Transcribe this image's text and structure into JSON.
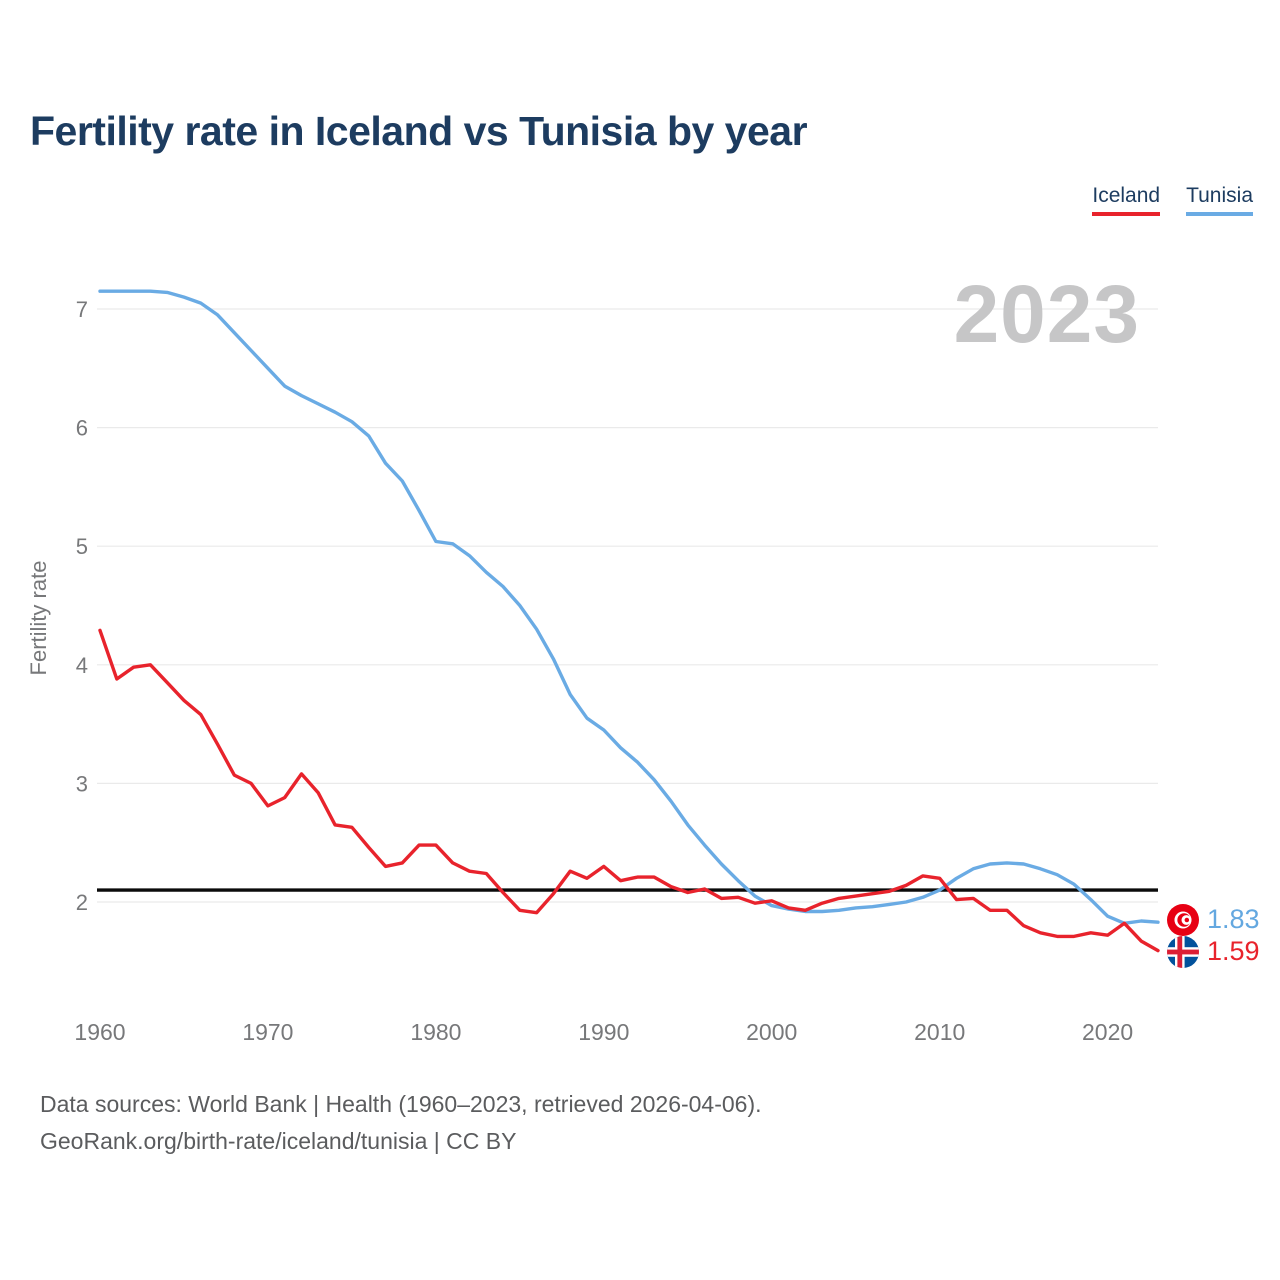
{
  "title": "Fertility rate in Iceland vs Tunisia by year",
  "legend": [
    {
      "label": "Iceland",
      "color": "#e8232c"
    },
    {
      "label": "Tunisia",
      "color": "#6aabe4"
    }
  ],
  "watermark": "2023",
  "chart_data": {
    "type": "line",
    "title": "Fertility rate in Iceland vs Tunisia by year",
    "xlabel": "",
    "ylabel": "Fertility rate",
    "x_ticks": [
      1960,
      1970,
      1980,
      1990,
      2000,
      2010,
      2020
    ],
    "y_ticks": [
      2,
      3,
      4,
      5,
      6,
      7
    ],
    "ylim": [
      1.45,
      7.35
    ],
    "xlim": [
      1960,
      2023
    ],
    "grid": "horizontal",
    "legend_position": "top-right",
    "reference_line": 2.1,
    "x": [
      1960,
      1961,
      1962,
      1963,
      1964,
      1965,
      1966,
      1967,
      1968,
      1969,
      1970,
      1971,
      1972,
      1973,
      1974,
      1975,
      1976,
      1977,
      1978,
      1979,
      1980,
      1981,
      1982,
      1983,
      1984,
      1985,
      1986,
      1987,
      1988,
      1989,
      1990,
      1991,
      1992,
      1993,
      1994,
      1995,
      1996,
      1997,
      1998,
      1999,
      2000,
      2001,
      2002,
      2003,
      2004,
      2005,
      2006,
      2007,
      2008,
      2009,
      2010,
      2011,
      2012,
      2013,
      2014,
      2015,
      2016,
      2017,
      2018,
      2019,
      2020,
      2021,
      2022,
      2023
    ],
    "series": [
      {
        "name": "Iceland",
        "color": "#e8232c",
        "values": [
          4.29,
          3.88,
          3.98,
          4.0,
          3.85,
          3.7,
          3.58,
          3.33,
          3.07,
          3.0,
          2.81,
          2.88,
          3.08,
          2.92,
          2.65,
          2.63,
          2.46,
          2.3,
          2.33,
          2.48,
          2.48,
          2.33,
          2.26,
          2.24,
          2.08,
          1.93,
          1.91,
          2.07,
          2.26,
          2.2,
          2.3,
          2.18,
          2.21,
          2.21,
          2.13,
          2.08,
          2.11,
          2.03,
          2.04,
          1.99,
          2.01,
          1.95,
          1.93,
          1.99,
          2.03,
          2.05,
          2.07,
          2.09,
          2.14,
          2.22,
          2.2,
          2.02,
          2.03,
          1.93,
          1.93,
          1.8,
          1.74,
          1.71,
          1.71,
          1.74,
          1.72,
          1.82,
          1.67,
          1.59
        ]
      },
      {
        "name": "Tunisia",
        "color": "#6aabe4",
        "values": [
          7.15,
          7.15,
          7.15,
          7.15,
          7.14,
          7.1,
          7.05,
          6.95,
          6.8,
          6.65,
          6.5,
          6.35,
          6.27,
          6.2,
          6.13,
          6.05,
          5.93,
          5.7,
          5.55,
          5.3,
          5.04,
          5.02,
          4.92,
          4.78,
          4.66,
          4.5,
          4.3,
          4.05,
          3.75,
          3.55,
          3.45,
          3.3,
          3.18,
          3.03,
          2.85,
          2.65,
          2.48,
          2.32,
          2.18,
          2.05,
          1.97,
          1.94,
          1.92,
          1.92,
          1.93,
          1.95,
          1.96,
          1.98,
          2.0,
          2.04,
          2.1,
          2.2,
          2.28,
          2.32,
          2.33,
          2.32,
          2.28,
          2.23,
          2.15,
          2.02,
          1.88,
          1.82,
          1.84,
          1.83
        ]
      }
    ],
    "end_labels": [
      {
        "series": "Tunisia",
        "value": "1.83",
        "flag": "tunisia"
      },
      {
        "series": "Iceland",
        "value": "1.59",
        "flag": "iceland"
      }
    ]
  },
  "footer": {
    "line1": "Data sources: World Bank | Health (1960–2023, retrieved 2026-04-06).",
    "line2": "GeoRank.org/birth-rate/iceland/tunisia | CC BY"
  }
}
